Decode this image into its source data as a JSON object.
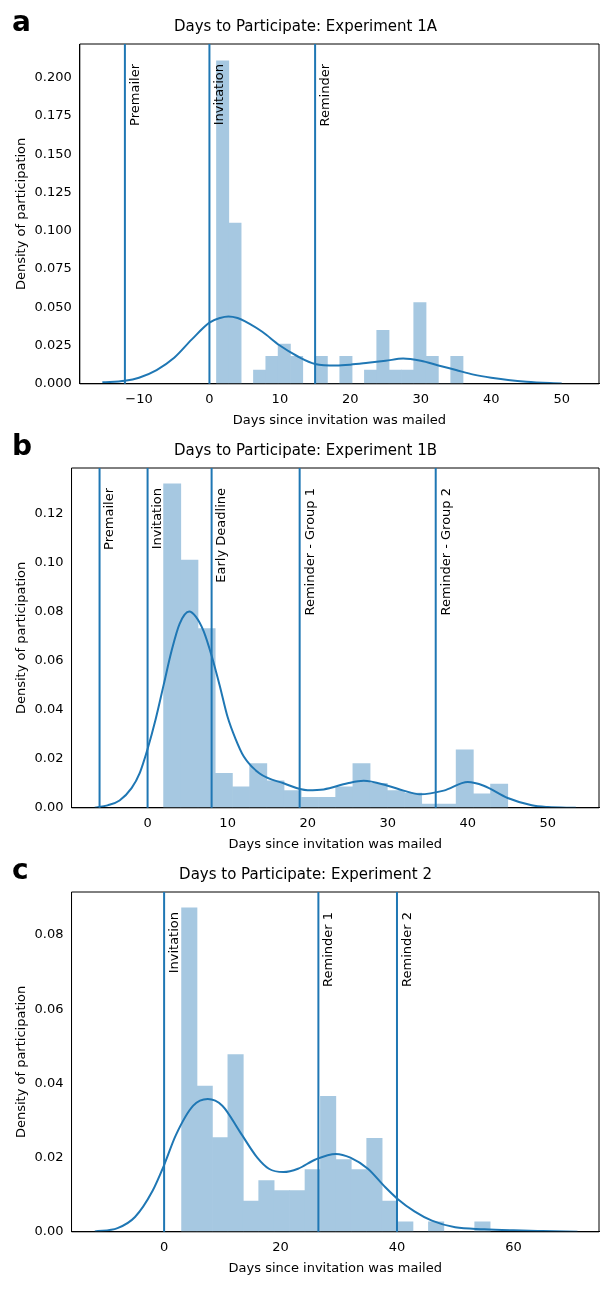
{
  "chart_data": [
    {
      "type": "histogram",
      "title": "Days to Participate: Experiment 1A",
      "xlabel": "Days since invitation was mailed",
      "ylabel": "Density of participation",
      "annotations": [
        "a"
      ],
      "grid": false,
      "legend": false,
      "xlim": [
        -18.4,
        55.3
      ],
      "xticks": [
        {
          "value": -10,
          "label": "−10"
        },
        0,
        10,
        20,
        30,
        40,
        50
      ],
      "ylim": [
        0,
        0.222
      ],
      "yticks": [
        {
          "value": 0,
          "label": "0.000"
        },
        {
          "value": 0.025,
          "label": "0.025"
        },
        {
          "value": 0.05,
          "label": "0.050"
        },
        {
          "value": 0.075,
          "label": "0.075"
        },
        {
          "value": 0.1,
          "label": "0.100"
        },
        {
          "value": 0.125,
          "label": "0.125"
        },
        {
          "value": 0.15,
          "label": "0.150"
        },
        {
          "value": 0.175,
          "label": "0.175"
        },
        {
          "value": 0.2,
          "label": "0.200"
        }
      ],
      "series": [
        {
          "color": "#a6c8e1",
          "bins": [
            1,
            2.75,
            4.5,
            6.25,
            8,
            9.75,
            11.5,
            13.25,
            15,
            16.75,
            18.5,
            20.25,
            22,
            23.75,
            25.5,
            27.25,
            29,
            30.75,
            32.5,
            34.25,
            36
          ],
          "values": [
            0.211,
            0.105,
            0,
            0.009,
            0.018,
            0.026,
            0.018,
            0,
            0.018,
            0,
            0.018,
            0,
            0.009,
            0.035,
            0.009,
            0.009,
            0.053,
            0.018,
            0,
            0.018
          ]
        },
        {
          "type": "line",
          "color": "#1f77b4",
          "x": [
            -15.2,
            -12,
            -10,
            -7.5,
            -5,
            -2.5,
            0,
            1.5,
            2.7,
            4,
            5,
            7.5,
            10,
            12.5,
            15,
            18,
            20,
            22.5,
            25,
            27.5,
            30,
            32.5,
            35,
            37.5,
            40,
            45,
            50
          ],
          "values": [
            0.001,
            0.002,
            0.004,
            0.009,
            0.017,
            0.029,
            0.04,
            0.043,
            0.044,
            0.043,
            0.041,
            0.034,
            0.025,
            0.018,
            0.013,
            0.012,
            0.0125,
            0.0137,
            0.015,
            0.0165,
            0.015,
            0.012,
            0.009,
            0.006,
            0.004,
            0.0013,
            0.0002
          ]
        }
      ],
      "ref_lines": [
        {
          "axis": "x",
          "value": -12,
          "label": "Premailer",
          "color": "#1f77b4"
        },
        {
          "axis": "x",
          "value": 0,
          "label": "Invitation",
          "color": "#1f77b4"
        },
        {
          "axis": "x",
          "value": 15,
          "label": "Reminder",
          "color": "#1f77b4"
        }
      ]
    },
    {
      "type": "histogram",
      "title": "Days to Participate: Experiment 1B",
      "xlabel": "Days since invitation was mailed",
      "ylabel": "Density of participation",
      "annotations": [
        "b"
      ],
      "grid": false,
      "legend": false,
      "xlim": [
        -9.5,
        56.4
      ],
      "xticks": [
        0,
        10,
        20,
        30,
        40,
        50
      ],
      "ylim": [
        0,
        0.1385
      ],
      "yticks": [
        {
          "value": 0,
          "label": "0.00"
        },
        {
          "value": 0.02,
          "label": "0.02"
        },
        {
          "value": 0.04,
          "label": "0.04"
        },
        {
          "value": 0.06,
          "label": "0.06"
        },
        {
          "value": 0.08,
          "label": "0.08"
        },
        {
          "value": 0.1,
          "label": "0.10"
        },
        {
          "value": 0.12,
          "label": "0.12"
        }
      ],
      "series": [
        {
          "color": "#a6c8e1",
          "bins": [
            2,
            4.15,
            6.3,
            8.45,
            10.6,
            12.75,
            14.9,
            17.05,
            19.2,
            21.35,
            23.5,
            25.65,
            27.8,
            29.95,
            32.1,
            34.25,
            36.4,
            38.55,
            40.7,
            42.85,
            45
          ],
          "values": [
            0.132,
            0.101,
            0.073,
            0.014,
            0.0085,
            0.018,
            0.011,
            0.007,
            0.0043,
            0.0043,
            0.0085,
            0.018,
            0.01,
            0.007,
            0.006,
            0.0015,
            0.0015,
            0.0236,
            0.0057,
            0.0097
          ]
        },
        {
          "type": "line",
          "color": "#1f77b4",
          "x": [
            -6.6,
            -5,
            -3.5,
            -2,
            -1,
            0,
            1,
            2,
            3,
            4,
            5.2,
            6,
            7,
            8,
            9,
            10,
            11,
            12,
            14,
            17,
            20,
            22,
            25,
            27,
            30,
            32,
            34,
            37,
            40,
            42,
            45,
            48,
            50,
            53.5
          ],
          "values": [
            0,
            0.001,
            0.003,
            0.008,
            0.014,
            0.024,
            0.036,
            0.05,
            0.064,
            0.075,
            0.08,
            0.078,
            0.072,
            0.062,
            0.05,
            0.037,
            0.028,
            0.021,
            0.014,
            0.01,
            0.0072,
            0.0075,
            0.01,
            0.011,
            0.009,
            0.007,
            0.0055,
            0.007,
            0.0105,
            0.009,
            0.004,
            0.001,
            0.0003,
            0
          ]
        }
      ],
      "ref_lines": [
        {
          "axis": "x",
          "value": -6,
          "label": "Premailer",
          "color": "#1f77b4"
        },
        {
          "axis": "x",
          "value": 0,
          "label": "Invitation",
          "color": "#1f77b4"
        },
        {
          "axis": "x",
          "value": 8,
          "label": "Early Deadline",
          "color": "#1f77b4"
        },
        {
          "axis": "x",
          "value": 19,
          "label": "Reminder - Group 1",
          "color": "#1f77b4"
        },
        {
          "axis": "x",
          "value": 36,
          "label": "Reminder - Group 2",
          "color": "#1f77b4"
        }
      ]
    },
    {
      "type": "histogram",
      "title": "Days to Participate: Experiment 2",
      "xlabel": "Days since invitation was mailed",
      "ylabel": "Density of participation",
      "annotations": [
        "c"
      ],
      "grid": false,
      "legend": false,
      "xlim": [
        -15.9,
        74.7
      ],
      "xticks": [
        0,
        20,
        40,
        60
      ],
      "ylim": [
        0,
        0.0916
      ],
      "yticks": [
        {
          "value": 0,
          "label": "0.00"
        },
        {
          "value": 0.02,
          "label": "0.02"
        },
        {
          "value": 0.04,
          "label": "0.04"
        },
        {
          "value": 0.06,
          "label": "0.06"
        },
        {
          "value": 0.08,
          "label": "0.08"
        }
      ],
      "series": [
        {
          "color": "#a6c8e1",
          "bins": [
            3,
            5.65,
            8.3,
            10.95,
            13.6,
            16.25,
            18.9,
            21.55,
            24.2,
            26.85,
            29.5,
            32.15,
            34.8,
            37.45,
            40.1,
            42.75,
            45.4,
            48.05,
            50.7,
            53.35,
            56
          ],
          "values": [
            0.0873,
            0.0393,
            0.0254,
            0.0478,
            0.0083,
            0.0138,
            0.0111,
            0.0111,
            0.0168,
            0.0365,
            0.0195,
            0.0168,
            0.0252,
            0.0083,
            0.0027,
            0,
            0.0027,
            0,
            0,
            0.0027
          ]
        },
        {
          "type": "line",
          "color": "#1f77b4",
          "x": [
            -11.9,
            -8,
            -5,
            -2,
            0,
            2,
            5,
            7.5,
            10,
            13,
            16,
            18,
            20.5,
            23,
            26,
            29.5,
            32,
            35,
            38,
            40,
            43,
            46,
            50,
            55,
            60,
            65,
            71
          ],
          "values": [
            0.0001,
            0.001,
            0.004,
            0.011,
            0.018,
            0.026,
            0.034,
            0.0358,
            0.034,
            0.027,
            0.02,
            0.017,
            0.0161,
            0.017,
            0.0195,
            0.021,
            0.02,
            0.017,
            0.012,
            0.009,
            0.0055,
            0.003,
            0.0012,
            0.0007,
            0.0004,
            0.0002,
            0
          ]
        }
      ],
      "ref_lines": [
        {
          "axis": "x",
          "value": 0,
          "label": "Invitation",
          "color": "#1f77b4"
        },
        {
          "axis": "x",
          "value": 26.5,
          "label": "Reminder 1",
          "color": "#1f77b4"
        },
        {
          "axis": "x",
          "value": 40,
          "label": "Reminder 2",
          "color": "#1f77b4"
        }
      ]
    }
  ]
}
